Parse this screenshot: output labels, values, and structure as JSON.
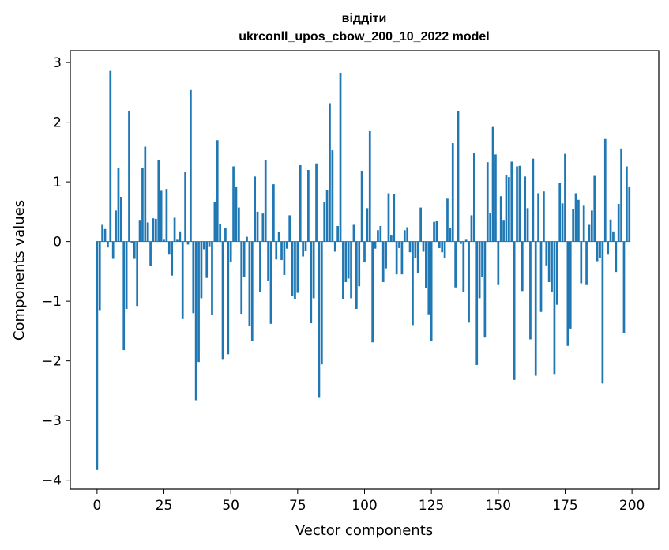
{
  "chart_data": {
    "type": "bar",
    "title": "віддіти",
    "subtitle": "ukrconll_upos_cbow_200_10_2022 model",
    "xlabel": "Vector components",
    "ylabel": "Components values",
    "xlim": [
      -10,
      210
    ],
    "ylim": [
      -4.15,
      3.2
    ],
    "xticks": [
      0,
      25,
      50,
      75,
      100,
      125,
      150,
      175,
      200
    ],
    "yticks": [
      -4,
      -3,
      -2,
      -1,
      0,
      1,
      2,
      3
    ],
    "xtick_labels": [
      "0",
      "25",
      "50",
      "75",
      "100",
      "125",
      "150",
      "175",
      "200"
    ],
    "ytick_labels": [
      "−4",
      "−3",
      "−2",
      "−1",
      "0",
      "1",
      "2",
      "3"
    ],
    "grid": false,
    "bar_color": "#1f77b4",
    "x": [
      0,
      1,
      2,
      3,
      4,
      5,
      6,
      7,
      8,
      9,
      10,
      11,
      12,
      13,
      14,
      15,
      16,
      17,
      18,
      19,
      20,
      21,
      22,
      23,
      24,
      25,
      26,
      27,
      28,
      29,
      30,
      31,
      32,
      33,
      34,
      35,
      36,
      37,
      38,
      39,
      40,
      41,
      42,
      43,
      44,
      45,
      46,
      47,
      48,
      49,
      50,
      51,
      52,
      53,
      54,
      55,
      56,
      57,
      58,
      59,
      60,
      61,
      62,
      63,
      64,
      65,
      66,
      67,
      68,
      69,
      70,
      71,
      72,
      73,
      74,
      75,
      76,
      77,
      78,
      79,
      80,
      81,
      82,
      83,
      84,
      85,
      86,
      87,
      88,
      89,
      90,
      91,
      92,
      93,
      94,
      95,
      96,
      97,
      98,
      99,
      100,
      101,
      102,
      103,
      104,
      105,
      106,
      107,
      108,
      109,
      110,
      111,
      112,
      113,
      114,
      115,
      116,
      117,
      118,
      119,
      120,
      121,
      122,
      123,
      124,
      125,
      126,
      127,
      128,
      129,
      130,
      131,
      132,
      133,
      134,
      135,
      136,
      137,
      138,
      139,
      140,
      141,
      142,
      143,
      144,
      145,
      146,
      147,
      148,
      149,
      150,
      151,
      152,
      153,
      154,
      155,
      156,
      157,
      158,
      159,
      160,
      161,
      162,
      163,
      164,
      165,
      166,
      167,
      168,
      169,
      170,
      171,
      172,
      173,
      174,
      175,
      176,
      177,
      178,
      179,
      180,
      181,
      182,
      183,
      184,
      185,
      186,
      187,
      188,
      189,
      190,
      191,
      192,
      193,
      194,
      195,
      196,
      197,
      198,
      199
    ],
    "values": [
      -3.83,
      -1.15,
      0.28,
      0.21,
      -0.1,
      2.86,
      -0.29,
      0.52,
      1.23,
      0.75,
      -1.82,
      -1.13,
      2.18,
      -0.03,
      -0.29,
      -1.08,
      0.35,
      1.23,
      1.59,
      0.32,
      -0.41,
      0.39,
      0.38,
      1.37,
      0.85,
      0.03,
      0.88,
      -0.22,
      -0.57,
      0.4,
      0.03,
      0.17,
      -1.3,
      1.16,
      -0.05,
      2.54,
      -1.2,
      -2.66,
      -2.02,
      -0.95,
      -0.13,
      -0.61,
      -0.08,
      -1.23,
      0.67,
      1.7,
      0.3,
      -1.97,
      0.23,
      -1.89,
      -0.35,
      1.26,
      0.91,
      0.57,
      -1.21,
      -0.6,
      0.08,
      -1.41,
      -1.66,
      1.09,
      0.5,
      -0.84,
      0.47,
      1.36,
      -0.66,
      -1.38,
      0.96,
      -0.3,
      0.16,
      -0.31,
      -0.56,
      -0.12,
      0.44,
      -0.91,
      -0.97,
      -0.86,
      1.28,
      -0.25,
      -0.16,
      1.2,
      -1.37,
      -0.95,
      1.31,
      -2.62,
      -2.06,
      0.67,
      0.86,
      2.32,
      1.53,
      -0.17,
      0.26,
      2.83,
      -0.97,
      -0.68,
      -0.62,
      -0.95,
      0.28,
      -1.13,
      -0.75,
      1.18,
      -0.35,
      0.56,
      1.85,
      -1.69,
      -0.12,
      0.19,
      0.26,
      -0.68,
      -0.45,
      0.81,
      0.1,
      0.79,
      -0.55,
      -0.11,
      -0.55,
      0.19,
      0.24,
      -0.18,
      -1.4,
      -0.27,
      -0.53,
      0.57,
      -0.17,
      -0.78,
      -1.22,
      -1.66,
      0.33,
      0.34,
      -0.11,
      -0.18,
      -0.28,
      0.72,
      0.22,
      1.65,
      -0.77,
      2.19,
      -0.04,
      -0.85,
      0.03,
      -1.36,
      0.44,
      1.49,
      -2.07,
      -0.95,
      -0.6,
      -1.61,
      1.33,
      0.48,
      1.92,
      1.46,
      -0.73,
      0.76,
      0.35,
      1.12,
      1.08,
      1.34,
      -2.32,
      1.26,
      1.27,
      -0.83,
      1.09,
      0.56,
      -1.64,
      1.39,
      -2.25,
      0.81,
      -1.18,
      0.84,
      -0.4,
      -0.68,
      -0.85,
      -2.22,
      -1.06,
      0.98,
      0.64,
      1.47,
      -1.75,
      -1.46,
      0.55,
      0.81,
      0.7,
      -0.7,
      0.6,
      -0.73,
      0.28,
      0.52,
      1.1,
      -0.33,
      -0.28,
      -2.38,
      1.72,
      -0.22,
      0.37,
      0.17,
      -0.51,
      0.63,
      1.56,
      -1.54,
      1.26,
      0.91
    ]
  }
}
